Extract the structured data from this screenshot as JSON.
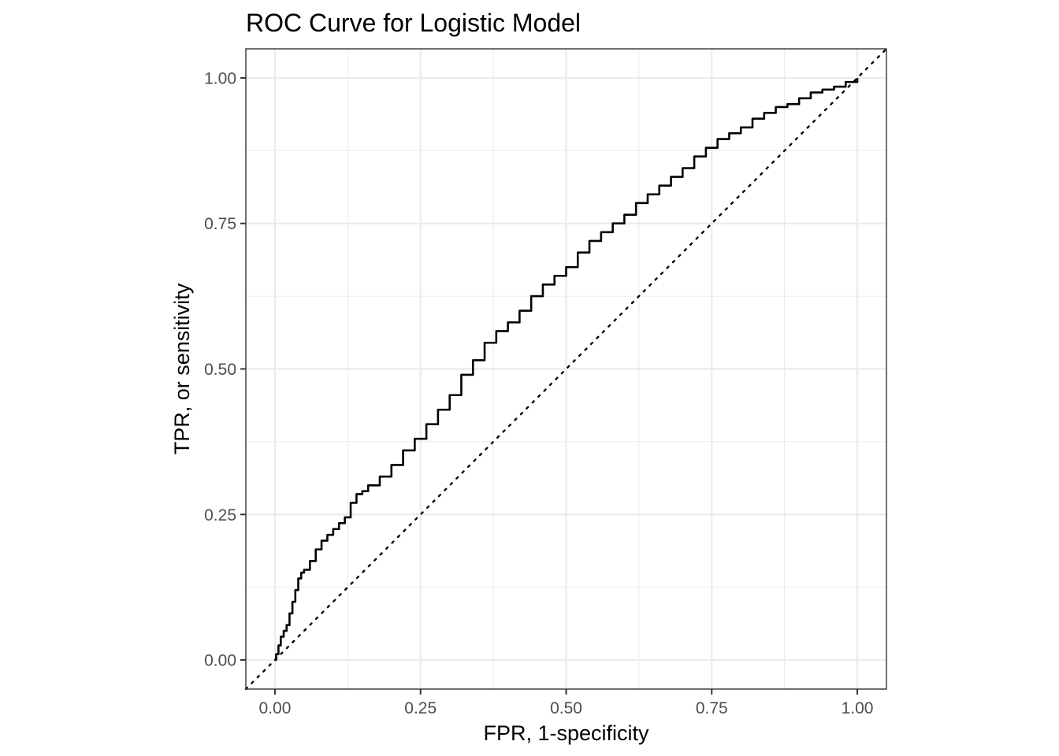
{
  "chart_data": {
    "type": "line",
    "title": "ROC Curve for Logistic Model",
    "xlabel": "FPR, 1-specificity",
    "ylabel": "TPR, or sensitivity",
    "xlim": [
      -0.05,
      1.05
    ],
    "ylim": [
      -0.05,
      1.05
    ],
    "x_ticks": [
      0,
      0.25,
      0.5,
      0.75,
      1
    ],
    "x_tick_labels": [
      "0.00",
      "0.25",
      "0.50",
      "0.75",
      "1.00"
    ],
    "y_ticks": [
      0,
      0.25,
      0.5,
      0.75,
      1
    ],
    "y_tick_labels": [
      "0.00",
      "0.25",
      "0.50",
      "0.75",
      "1.00"
    ],
    "minor_breaks": [
      0.125,
      0.375,
      0.625,
      0.875
    ],
    "grid": true,
    "legend": "none",
    "series": [
      {
        "style": "solid",
        "color": "#000000",
        "x": [
          0,
          0.002,
          0.006,
          0.01,
          0.015,
          0.02,
          0.025,
          0.03,
          0.035,
          0.04,
          0.045,
          0.05,
          0.06,
          0.07,
          0.08,
          0.09,
          0.1,
          0.11,
          0.12,
          0.13,
          0.14,
          0.15,
          0.16,
          0.18,
          0.2,
          0.22,
          0.24,
          0.26,
          0.28,
          0.3,
          0.32,
          0.34,
          0.36,
          0.38,
          0.4,
          0.42,
          0.44,
          0.46,
          0.48,
          0.5,
          0.52,
          0.54,
          0.56,
          0.58,
          0.6,
          0.62,
          0.64,
          0.66,
          0.68,
          0.7,
          0.72,
          0.74,
          0.76,
          0.78,
          0.8,
          0.82,
          0.84,
          0.86,
          0.88,
          0.9,
          0.92,
          0.94,
          0.96,
          0.98,
          1.0
        ],
        "y": [
          0,
          0.01,
          0.025,
          0.04,
          0.05,
          0.06,
          0.08,
          0.1,
          0.12,
          0.14,
          0.15,
          0.155,
          0.17,
          0.19,
          0.205,
          0.215,
          0.225,
          0.235,
          0.245,
          0.27,
          0.285,
          0.29,
          0.3,
          0.315,
          0.335,
          0.36,
          0.38,
          0.405,
          0.43,
          0.455,
          0.49,
          0.515,
          0.545,
          0.565,
          0.58,
          0.6,
          0.625,
          0.645,
          0.66,
          0.675,
          0.7,
          0.72,
          0.735,
          0.75,
          0.765,
          0.785,
          0.8,
          0.815,
          0.83,
          0.845,
          0.865,
          0.88,
          0.895,
          0.905,
          0.915,
          0.93,
          0.94,
          0.95,
          0.955,
          0.965,
          0.975,
          0.98,
          0.985,
          0.993,
          1.0
        ]
      },
      {
        "style": "dotted",
        "color": "#000000",
        "x": [
          -0.05,
          1.05
        ],
        "y": [
          -0.05,
          1.05
        ]
      }
    ]
  }
}
